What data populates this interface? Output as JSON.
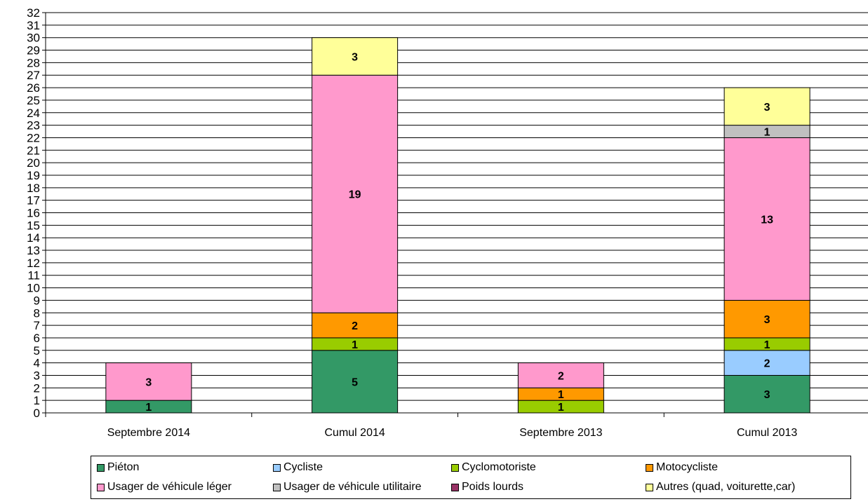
{
  "chart_data": {
    "type": "bar",
    "stacked": true,
    "categories": [
      "Septembre 2014",
      "Cumul 2014",
      "Septembre 2013",
      "Cumul 2013"
    ],
    "series": [
      {
        "name": "Piéton",
        "color": "#339966",
        "values": [
          1,
          5,
          0,
          3
        ]
      },
      {
        "name": "Cycliste",
        "color": "#99CCFF",
        "values": [
          0,
          0,
          0,
          2
        ]
      },
      {
        "name": "Cyclomotoriste",
        "color": "#99CC00",
        "values": [
          0,
          1,
          1,
          1
        ]
      },
      {
        "name": "Motocycliste",
        "color": "#FF9900",
        "values": [
          0,
          2,
          1,
          3
        ]
      },
      {
        "name": "Usager de véhicule léger",
        "color": "#FF99CC",
        "values": [
          3,
          19,
          2,
          13
        ]
      },
      {
        "name": "Usager de véhicule utilitaire",
        "color": "#C0C0C0",
        "values": [
          0,
          0,
          0,
          1
        ]
      },
      {
        "name": "Poids lourds",
        "color": "#993366",
        "values": [
          0,
          0,
          0,
          0
        ]
      },
      {
        "name": "Autres (quad, voiturette,car)",
        "color": "#FFFF99",
        "values": [
          0,
          3,
          0,
          3
        ]
      }
    ],
    "ylim": [
      0,
      32
    ],
    "yticks": [
      0,
      1,
      2,
      3,
      4,
      5,
      6,
      7,
      8,
      9,
      10,
      11,
      12,
      13,
      14,
      15,
      16,
      17,
      18,
      19,
      20,
      21,
      22,
      23,
      24,
      25,
      26,
      27,
      28,
      29,
      30,
      31,
      32
    ],
    "grid": true,
    "legend_position": "bottom",
    "xlabel": "",
    "ylabel": ""
  }
}
